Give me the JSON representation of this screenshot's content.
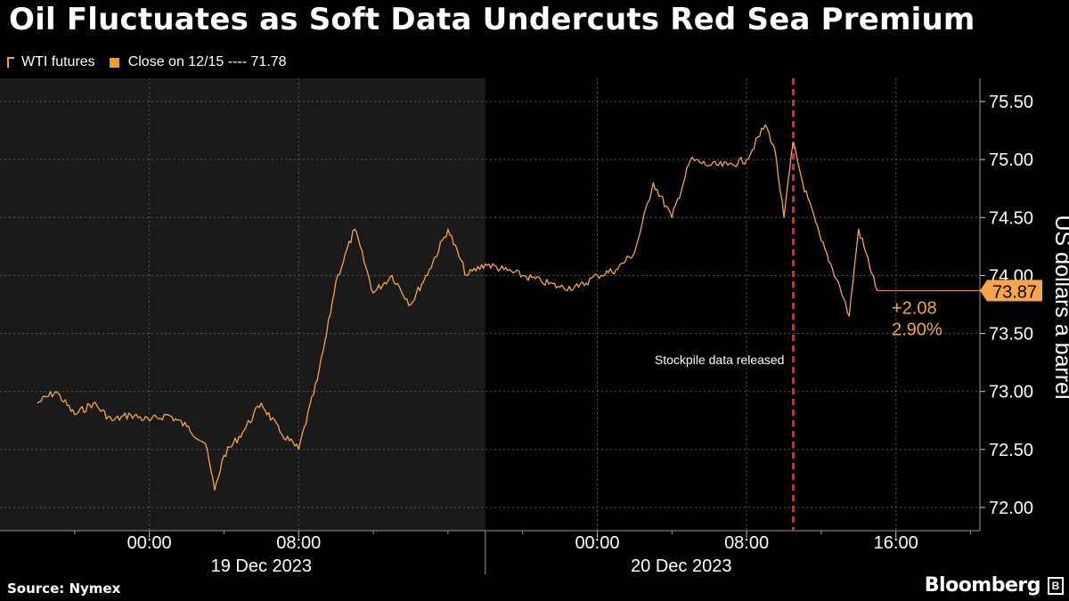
{
  "header": {
    "title": "Oil Fluctuates as Soft Data Undercuts Red Sea Premium",
    "legend_series": "WTI futures",
    "legend_close": "Close on 12/15 ---- 71.78"
  },
  "footer": {
    "source": "Source: Nymex",
    "brand": "Bloomberg"
  },
  "colors": {
    "series": "#f6a445",
    "close_swatch": "#f39a1f",
    "annotation_line": "#d92b36",
    "shade": "#1a1a1a",
    "grid": "#555555",
    "background": "#000000"
  },
  "icons": [
    "line-chart-icon",
    "close-swatch-icon",
    "bloomberg-logo-icon"
  ],
  "chart_data": {
    "type": "line",
    "title": "Oil Fluctuates as Soft Data Undercuts Red Sea Premium",
    "ylabel": "US dollars a barrel",
    "xlabel": "",
    "ylim": [
      71.8,
      75.7
    ],
    "y_ticks": [
      "75.50",
      "75.00",
      "74.50",
      "74.00",
      "73.50",
      "73.00",
      "72.50",
      "72.00"
    ],
    "x_ticks": [
      "00:00",
      "08:00",
      "00:00",
      "08:00",
      "16:00"
    ],
    "x_dates": [
      "19 Dec 2023",
      "20 Dec 2023"
    ],
    "grid": true,
    "legend_position": "top-left",
    "annotation": "Stockpile data released",
    "last_value": "73.87",
    "change_abs": "+2.08",
    "change_pct": "2.90%",
    "series": [
      {
        "name": "WTI futures",
        "x": [
          "2023-12-18 18:00",
          "2023-12-18 19:00",
          "2023-12-18 20:00",
          "2023-12-18 21:00",
          "2023-12-18 22:00",
          "2023-12-18 23:00",
          "2023-12-19 00:00",
          "2023-12-19 01:00",
          "2023-12-19 02:00",
          "2023-12-19 03:00",
          "2023-12-19 03:30",
          "2023-12-19 04:00",
          "2023-12-19 05:00",
          "2023-12-19 06:00",
          "2023-12-19 07:00",
          "2023-12-19 08:00",
          "2023-12-19 09:00",
          "2023-12-19 09:30",
          "2023-12-19 10:00",
          "2023-12-19 11:00",
          "2023-12-19 12:00",
          "2023-12-19 13:00",
          "2023-12-19 14:00",
          "2023-12-19 15:00",
          "2023-12-19 16:00",
          "2023-12-19 17:00",
          "2023-12-19 18:00",
          "2023-12-19 19:00",
          "2023-12-19 20:00",
          "2023-12-19 21:00",
          "2023-12-19 22:00",
          "2023-12-19 23:00",
          "2023-12-20 00:00",
          "2023-12-20 01:00",
          "2023-12-20 02:00",
          "2023-12-20 03:00",
          "2023-12-20 04:00",
          "2023-12-20 05:00",
          "2023-12-20 06:00",
          "2023-12-20 07:00",
          "2023-12-20 08:00",
          "2023-12-20 09:00",
          "2023-12-20 09:30",
          "2023-12-20 10:00",
          "2023-12-20 10:30",
          "2023-12-20 11:00",
          "2023-12-20 12:00",
          "2023-12-20 13:00",
          "2023-12-20 13:30",
          "2023-12-20 14:00",
          "2023-12-20 15:00"
        ],
        "values": [
          72.9,
          73.0,
          72.8,
          72.9,
          72.75,
          72.8,
          72.75,
          72.8,
          72.7,
          72.55,
          72.15,
          72.45,
          72.65,
          72.9,
          72.65,
          72.5,
          73.1,
          73.5,
          73.95,
          74.4,
          73.85,
          74.0,
          73.75,
          74.05,
          74.4,
          74.0,
          74.1,
          74.05,
          74.0,
          73.95,
          73.9,
          73.9,
          74.0,
          74.05,
          74.2,
          74.8,
          74.5,
          75.0,
          74.95,
          74.95,
          75.0,
          75.3,
          75.1,
          74.5,
          75.15,
          74.8,
          74.3,
          73.9,
          73.65,
          74.4,
          73.87
        ]
      }
    ]
  }
}
